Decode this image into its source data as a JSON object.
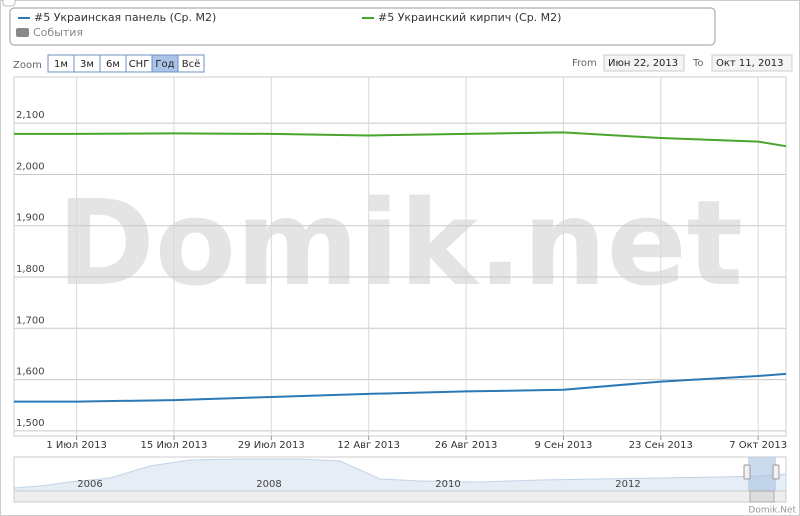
{
  "chart_data": {
    "type": "line",
    "x": [
      "2013-06-22",
      "2013-07-01",
      "2013-07-15",
      "2013-07-29",
      "2013-08-12",
      "2013-08-26",
      "2013-09-09",
      "2013-09-23",
      "2013-10-07",
      "2013-10-11"
    ],
    "series": [
      {
        "name": "#5 Украинская панель (Ср. M2)",
        "color": "#2a78b5",
        "values": [
          1557,
          1557,
          1560,
          1566,
          1572,
          1577,
          1580,
          1596,
          1607,
          1611
        ]
      },
      {
        "name": "#5 Украинский кирпич (Ср. M2)",
        "color": "#4aa52e",
        "values": [
          2079,
          2079,
          2080,
          2079,
          2076,
          2079,
          2082,
          2071,
          2064,
          2055
        ]
      }
    ],
    "events_legend": {
      "name": "События",
      "color": "#888888"
    },
    "xlim": [
      "2013-06-22",
      "2013-10-11"
    ],
    "xticks": [
      {
        "value": "2013-07-01",
        "label": "1 Июл 2013"
      },
      {
        "value": "2013-07-15",
        "label": "15 Июл 2013"
      },
      {
        "value": "2013-07-29",
        "label": "29 Июл 2013"
      },
      {
        "value": "2013-08-12",
        "label": "12 Авг 2013"
      },
      {
        "value": "2013-08-26",
        "label": "26 Авг 2013"
      },
      {
        "value": "2013-09-09",
        "label": "9 Сен 2013"
      },
      {
        "value": "2013-09-23",
        "label": "23 Сен 2013"
      },
      {
        "value": "2013-10-07",
        "label": "7 Окт 2013"
      }
    ],
    "ylim": [
      1490,
      2190
    ],
    "yticks": [
      {
        "value": 1500,
        "label": "1,500"
      },
      {
        "value": 1600,
        "label": "1,600"
      },
      {
        "value": 1700,
        "label": "1,700"
      },
      {
        "value": 1800,
        "label": "1,800"
      },
      {
        "value": 1900,
        "label": "1,900"
      },
      {
        "value": 2000,
        "label": "2,000"
      },
      {
        "value": 2100,
        "label": "2,100"
      }
    ],
    "grid": true,
    "watermark": "Domik.net"
  },
  "range_selector": {
    "zoom_label": "Zoom",
    "buttons": [
      "1м",
      "3м",
      "6м",
      "СНГ",
      "Год",
      "Всё"
    ],
    "selected": 4,
    "from_label": "From",
    "from": "Июн 22, 2013",
    "to_label": "To",
    "to": "Окт 11, 2013"
  },
  "navigator": {
    "labels": [
      "2006",
      "2008",
      "2010",
      "2012"
    ]
  },
  "credits": "Domik.Net"
}
